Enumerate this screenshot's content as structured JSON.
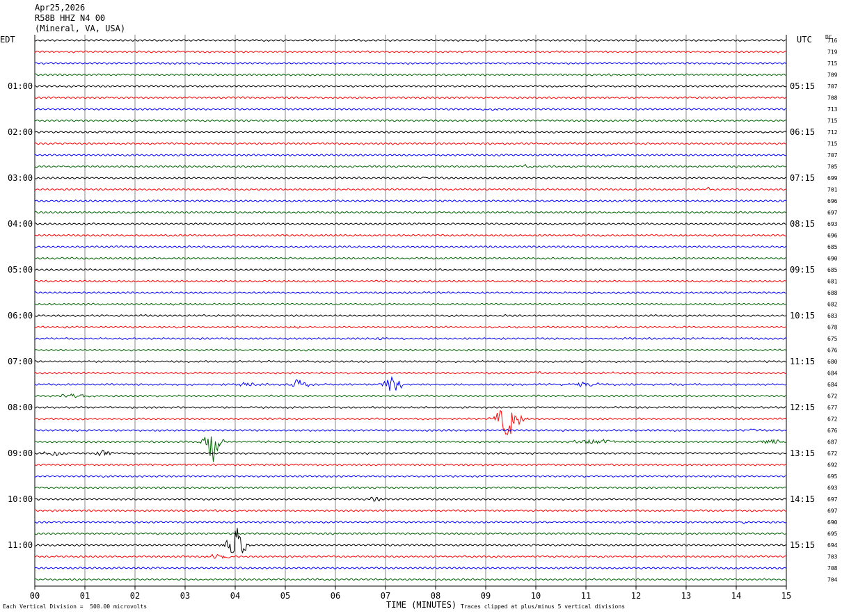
{
  "header": {
    "date": "Apr25,2026",
    "station": "R58B HHZ N4 00",
    "location": "(Mineral, VA, USA)"
  },
  "left_zone": "EDT",
  "right_zone": "UTC",
  "dc_header": "DC",
  "footer": {
    "scale_note": "Each Vertical Division =  500.00 microvolts",
    "xlabel": "TIME (MINUTES)",
    "clip_note": "Traces clipped at plus/minus 5 vertical divisions"
  },
  "colors": {
    "black": "#000000",
    "red": "#ff0000",
    "blue": "#0000ff",
    "green": "#006400",
    "grid": "#888888"
  },
  "chart_data": {
    "type": "line",
    "subtype": "helicorder",
    "xlim": [
      0,
      15
    ],
    "x_ticks": [
      "00",
      "01",
      "02",
      "03",
      "04",
      "05",
      "06",
      "07",
      "08",
      "09",
      "10",
      "11",
      "12",
      "13",
      "14",
      "15"
    ],
    "trace_minutes": 15,
    "trace_color_cycle": [
      "black",
      "red",
      "blue",
      "green"
    ],
    "left_hour_labels": [
      "01:00",
      "02:00",
      "03:00",
      "04:00",
      "05:00",
      "06:00",
      "07:00",
      "08:00",
      "09:00",
      "10:00",
      "11:00"
    ],
    "right_hour_labels": [
      "05:15",
      "06:15",
      "07:15",
      "08:15",
      "09:15",
      "10:15",
      "11:15",
      "12:15",
      "13:15",
      "14:15",
      "15:15"
    ],
    "dc_values": [
      "716",
      "719",
      "715",
      "709",
      "707",
      "708",
      "713",
      "715",
      "712",
      "715",
      "707",
      "705",
      "699",
      "701",
      "696",
      "697",
      "693",
      "696",
      "685",
      "690",
      "685",
      "681",
      "688",
      "682",
      "683",
      "678",
      "675",
      "676",
      "680",
      "684",
      "684",
      "672",
      "677",
      "672",
      "676",
      "687",
      "672",
      "692",
      "695",
      "693",
      "697",
      "697",
      "690",
      "695",
      "694",
      "703",
      "708",
      "704"
    ],
    "events": [
      {
        "trace": 0,
        "minute": 4.35,
        "amp": 3,
        "dur": 0.05
      },
      {
        "trace": 0,
        "minute": 7.7,
        "amp": 3,
        "dur": 0.1
      },
      {
        "trace": 3,
        "minute": 11.6,
        "amp": 2,
        "dur": 0.3
      },
      {
        "trace": 4,
        "minute": 0.5,
        "amp": 2,
        "dur": 0.3
      },
      {
        "trace": 6,
        "minute": 9.0,
        "amp": 2,
        "dur": 0.7
      },
      {
        "trace": 11,
        "minute": 9.8,
        "amp": 3,
        "dur": 0.2
      },
      {
        "trace": 12,
        "minute": 7.8,
        "amp": 3,
        "dur": 0.2
      },
      {
        "trace": 13,
        "minute": 13.45,
        "amp": 4,
        "dur": 0.15
      },
      {
        "trace": 20,
        "minute": 8.5,
        "amp": 3,
        "dur": 0.1
      },
      {
        "trace": 25,
        "minute": 5.2,
        "amp": 3,
        "dur": 0.4
      },
      {
        "trace": 26,
        "minute": 6.9,
        "amp": 5,
        "dur": 0.15
      },
      {
        "trace": 29,
        "minute": 10.0,
        "amp": 3,
        "dur": 0.3
      },
      {
        "trace": 30,
        "minute": 4.2,
        "amp": 4,
        "dur": 0.8
      },
      {
        "trace": 30,
        "minute": 5.3,
        "amp": 16,
        "dur": 0.3
      },
      {
        "trace": 30,
        "minute": 7.15,
        "amp": 28,
        "dur": 0.35
      },
      {
        "trace": 30,
        "minute": 10.9,
        "amp": 4,
        "dur": 1.0
      },
      {
        "trace": 31,
        "minute": 0.8,
        "amp": 6,
        "dur": 0.6
      },
      {
        "trace": 33,
        "minute": 9.45,
        "amp": 40,
        "dur": 0.5
      },
      {
        "trace": 34,
        "minute": 14.3,
        "amp": 4,
        "dur": 0.3
      },
      {
        "trace": 35,
        "minute": 3.55,
        "amp": 45,
        "dur": 0.35
      },
      {
        "trace": 35,
        "minute": 11.2,
        "amp": 6,
        "dur": 1.0
      },
      {
        "trace": 35,
        "minute": 14.7,
        "amp": 7,
        "dur": 0.5
      },
      {
        "trace": 36,
        "minute": 0.4,
        "amp": 6,
        "dur": 0.5
      },
      {
        "trace": 36,
        "minute": 1.4,
        "amp": 6,
        "dur": 0.4
      },
      {
        "trace": 40,
        "minute": 6.8,
        "amp": 5,
        "dur": 0.3
      },
      {
        "trace": 42,
        "minute": 14.15,
        "amp": 7,
        "dur": 0.1
      },
      {
        "trace": 44,
        "minute": 4.0,
        "amp": 42,
        "dur": 0.4
      },
      {
        "trace": 45,
        "minute": 3.7,
        "amp": 6,
        "dur": 0.6
      }
    ]
  }
}
